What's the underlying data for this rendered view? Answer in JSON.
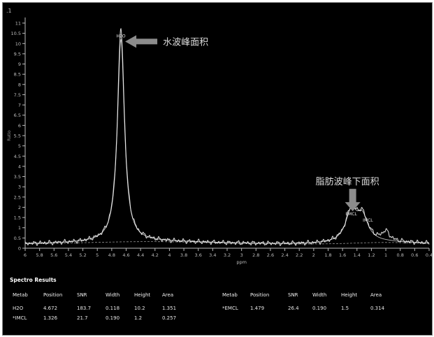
{
  "chart_data": {
    "type": "line",
    "corner_label": ".1",
    "xlabel": "ppm",
    "ylabel": "Ratio",
    "xlim": [
      6,
      0.4
    ],
    "ylim": [
      0,
      11
    ],
    "x_ticks": [
      "6",
      "5.8",
      "5.6",
      "5.4",
      "5.2",
      "5",
      "4.8",
      "4.6",
      "4.4",
      "4.2",
      "4",
      "3.8",
      "3.6",
      "3.4",
      "3.2",
      "3",
      "2.8",
      "2.6",
      "2.4",
      "2.2",
      "2",
      "1.8",
      "1.6",
      "1.4",
      "1.2",
      "1",
      "0.8",
      "0.6",
      "0.4"
    ],
    "y_ticks": [
      "0",
      "0.5",
      "1",
      "1.5",
      "2",
      "2.5",
      "3",
      "3.5",
      "4",
      "4.5",
      "5",
      "5.5",
      "6",
      "6.5",
      "7",
      "7.5",
      "8",
      "8.5",
      "9",
      "9.5",
      "10",
      "10.5",
      "11"
    ],
    "peaks": [
      {
        "label": "H2O",
        "position": 4.672,
        "height": 10.2,
        "width": 0.118
      },
      {
        "label": "EMCL",
        "position": 1.479,
        "height": 1.5,
        "width": 0.19
      },
      {
        "label": "IMCL",
        "position": 1.326,
        "height": 1.2,
        "width": 0.19
      }
    ],
    "extra_bumps": [
      {
        "position": 1.0,
        "height": 0.45,
        "width": 0.12
      }
    ],
    "annotations": [
      {
        "text": "水波峰面积",
        "target": "H2O"
      },
      {
        "text": "脂肪波峰下面积",
        "target": "EMCL"
      }
    ],
    "colors": {
      "background": "#000000",
      "trace": "#e8e8e8",
      "axis": "#bdbdbd",
      "arrow": "#8c8c8c",
      "annotation_text": "#dcdcdc"
    }
  },
  "results": {
    "title": "Spectro Results",
    "headers": [
      "Metab",
      "Position",
      "SNR",
      "Width",
      "Height",
      "Area"
    ],
    "left_rows": [
      [
        "H2O",
        "4.672",
        "183.7",
        "0.118",
        "10.2",
        "1.351"
      ],
      [
        "*IMCL",
        "1.326",
        "21.7",
        "0.190",
        "1.2",
        "0.257"
      ]
    ],
    "right_rows": [
      [
        "*EMCL",
        "1.479",
        "26.4",
        "0.190",
        "1.5",
        "0.314"
      ]
    ]
  }
}
